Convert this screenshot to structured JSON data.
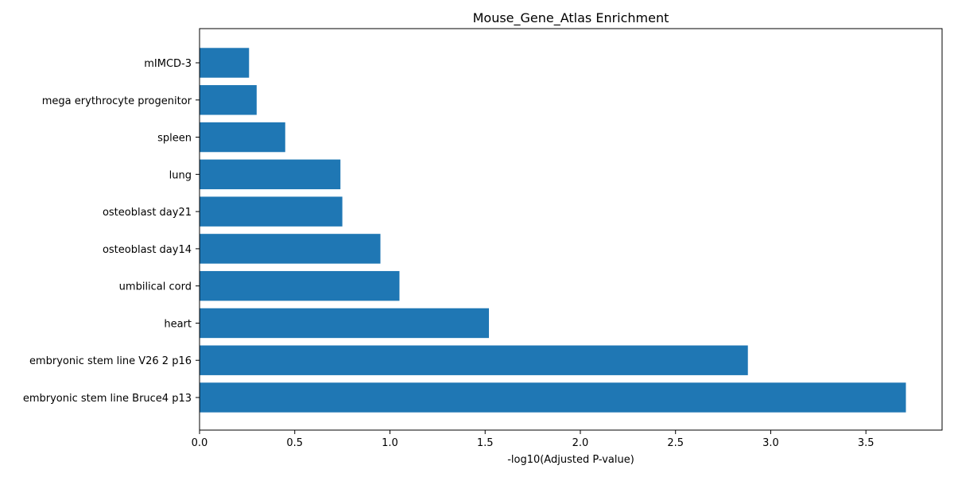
{
  "chart_data": {
    "type": "bar",
    "orientation": "horizontal",
    "title": "Mouse_Gene_Atlas Enrichment",
    "xlabel": "-log10(Adjusted P-value)",
    "ylabel": "",
    "categories": [
      "embryonic stem line Bruce4 p13",
      "embryonic stem line V26 2 p16",
      "heart",
      "umbilical cord",
      "osteoblast day14",
      "osteoblast day21",
      "lung",
      "spleen",
      "mega erythrocyte progenitor",
      "mIMCD-3"
    ],
    "values": [
      3.71,
      2.88,
      1.52,
      1.05,
      0.95,
      0.75,
      0.74,
      0.45,
      0.3,
      0.26
    ],
    "xlim": [
      0,
      3.9
    ],
    "xticks": [
      "0.0",
      "0.5",
      "1.0",
      "1.5",
      "2.0",
      "2.5",
      "3.0",
      "3.5"
    ],
    "bar_color": "#1f77b4",
    "grid": false
  }
}
